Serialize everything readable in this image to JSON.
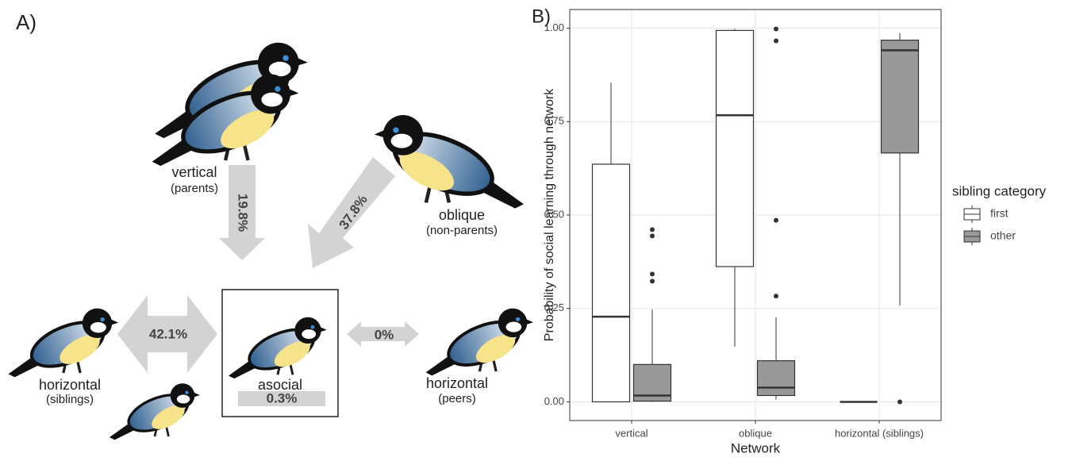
{
  "diagram": {
    "panel_label": "A)",
    "vertical": {
      "label": "vertical",
      "sublabel": "(parents)",
      "percent": "19.8%"
    },
    "oblique": {
      "label": "oblique",
      "sublabel": "(non-parents)",
      "percent": "37.8%"
    },
    "siblings": {
      "label": "horizontal",
      "sublabel": "(siblings)",
      "percent": "42.1%"
    },
    "asocial": {
      "label": "asocial",
      "percent": "0.3%"
    },
    "peers": {
      "label": "horizontal",
      "sublabel": "(peers)",
      "percent": "0%"
    }
  },
  "chart_data": {
    "type": "box",
    "panel_label": "B)",
    "x_label": "Network",
    "y_label": "Probability of social learning through network",
    "categories": [
      "vertical",
      "oblique",
      "horizontal (siblings)"
    ],
    "legend_title": "sibling category",
    "legend_position": "right",
    "grid": true,
    "ylim": [
      -0.05,
      1.05
    ],
    "yticks": [
      {
        "value": 0,
        "label": "0.00"
      },
      {
        "value": 0.25,
        "label": "0.25"
      },
      {
        "value": 0.5,
        "label": "0.50"
      },
      {
        "value": 0.75,
        "label": "0.75"
      },
      {
        "value": 1,
        "label": "1.00"
      }
    ],
    "series": [
      {
        "name": "first",
        "color": "#ffffff",
        "boxes": [
          {
            "min": 0,
            "q1": 0,
            "median": 0.228,
            "q3": 0.636,
            "max": 0.854,
            "outliers": []
          },
          {
            "min": 0.148,
            "q1": 0.362,
            "median": 0.767,
            "q3": 0.994,
            "max": 0.998,
            "outliers": []
          },
          {
            "min": 0,
            "q1": 0,
            "median": 0,
            "q3": 0,
            "max": 0,
            "outliers": []
          }
        ]
      },
      {
        "name": "other",
        "color": "#999999",
        "boxes": [
          {
            "min": 0,
            "q1": 0.002,
            "median": 0.017,
            "q3": 0.1,
            "max": 0.247,
            "outliers": [
              0.461,
              0.444,
              0.342,
              0.323
            ]
          },
          {
            "min": 0.006,
            "q1": 0.017,
            "median": 0.038,
            "q3": 0.11,
            "max": 0.226,
            "outliers": [
              0.998,
              0.966,
              0.486,
              0.283
            ]
          },
          {
            "min": 0.258,
            "q1": 0.666,
            "median": 0.941,
            "q3": 0.968,
            "max": 0.987,
            "outliers": [
              0
            ]
          }
        ]
      }
    ]
  }
}
